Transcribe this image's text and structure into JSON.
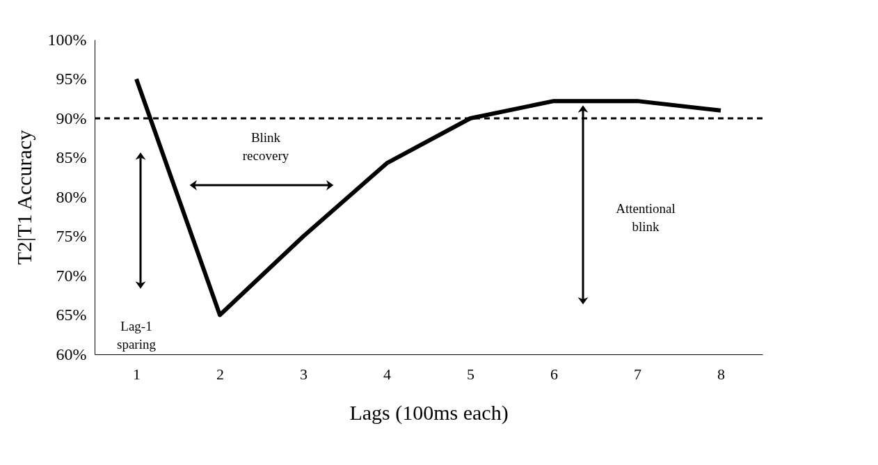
{
  "chart_data": {
    "type": "line",
    "xlabel": "Lags (100ms each)",
    "ylabel": "T2|T1 Accuracy",
    "x": [
      1,
      2,
      3,
      4,
      5,
      6,
      7,
      8
    ],
    "series": [
      {
        "color": "#000000",
        "values": [
          95,
          65,
          75,
          84.3,
          90,
          92.2,
          92.2,
          91
        ]
      }
    ],
    "xlim": [
      0.5,
      8.5
    ],
    "xticks": [
      1,
      2,
      3,
      4,
      5,
      6,
      7,
      8
    ],
    "ylim": [
      60,
      100
    ],
    "yticks": [
      {
        "value": 60,
        "label": "60%"
      },
      {
        "value": 65,
        "label": "65%"
      },
      {
        "value": 70,
        "label": "70%"
      },
      {
        "value": 75,
        "label": "75%"
      },
      {
        "value": 80,
        "label": "80%"
      },
      {
        "value": 85,
        "label": "85%"
      },
      {
        "value": 90,
        "label": "90%"
      },
      {
        "value": 95,
        "label": "95%"
      },
      {
        "value": 100,
        "label": "100%"
      }
    ],
    "ref_lines": [
      {
        "axis": "y",
        "value": 90,
        "color": "#000000",
        "line_style": "dashed"
      }
    ],
    "annotations": [
      "Blink recovery",
      "Attentional blink",
      "Lag-1 sparing"
    ],
    "grid": false,
    "marker": "none",
    "line_style": "solid"
  }
}
